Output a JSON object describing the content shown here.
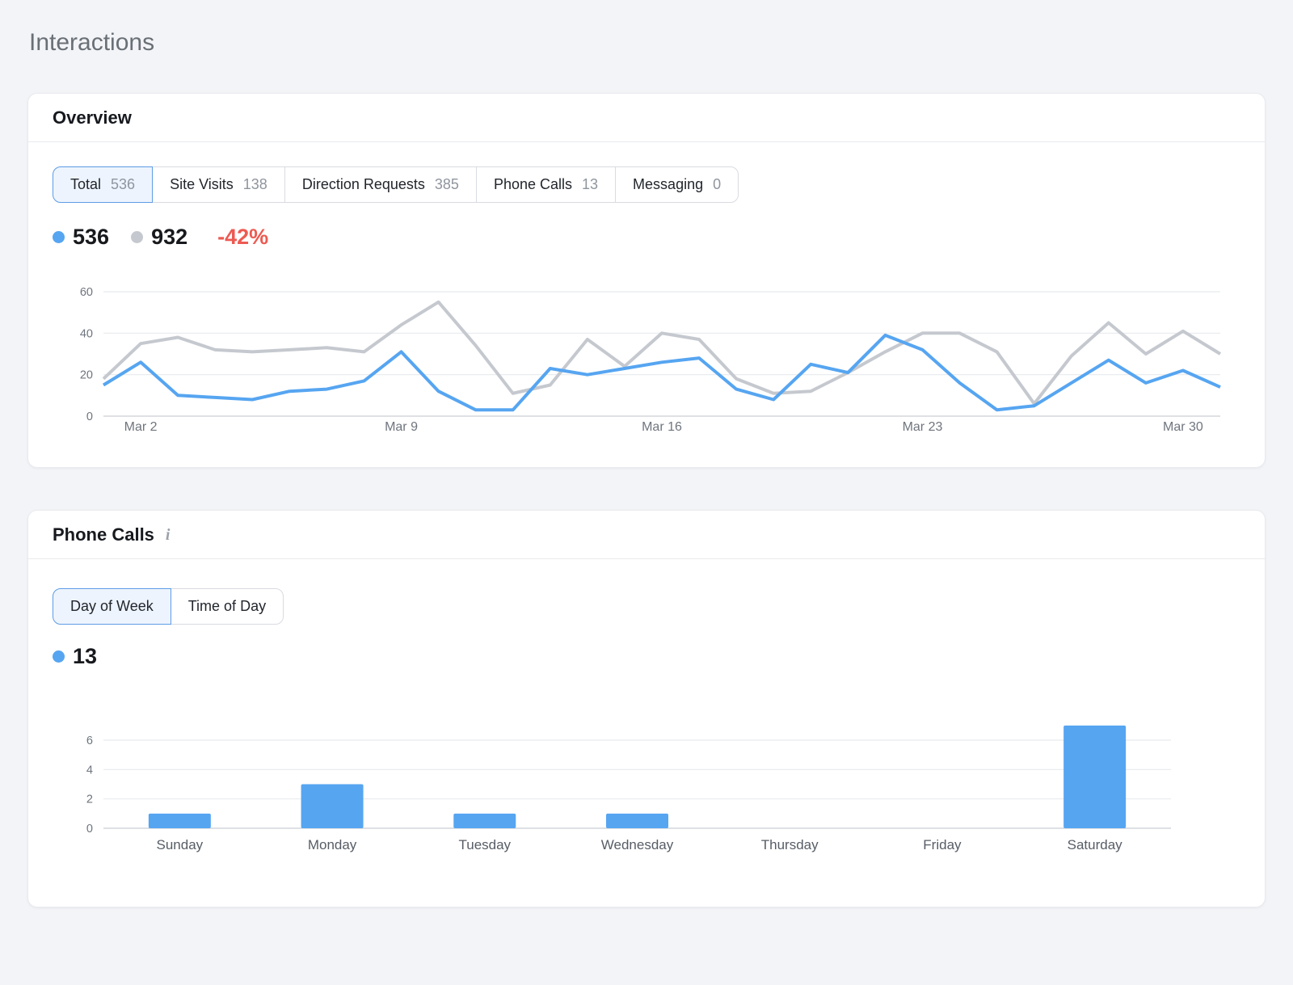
{
  "page": {
    "title": "Interactions"
  },
  "colors": {
    "accent_blue": "#56A5F1",
    "compare_gray": "#C5C9CF",
    "negative_red": "#ED5A52",
    "grid_line": "#E8EAEE",
    "zero_line": "#C9CDD3",
    "axis_label": "#6F757E",
    "category_label": "#575D66"
  },
  "overview": {
    "title": "Overview",
    "tabs": [
      {
        "label": "Total",
        "value": "536",
        "active": true
      },
      {
        "label": "Site Visits",
        "value": "138",
        "active": false
      },
      {
        "label": "Direction Requests",
        "value": "385",
        "active": false
      },
      {
        "label": "Phone Calls",
        "value": "13",
        "active": false
      },
      {
        "label": "Messaging",
        "value": "0",
        "active": false
      }
    ],
    "legend": {
      "current": "536",
      "previous": "932",
      "delta": "-42%"
    }
  },
  "phone_calls": {
    "title": "Phone Calls",
    "info_icon": "i",
    "tabs": [
      {
        "label": "Day of Week",
        "active": true
      },
      {
        "label": "Time of Day",
        "active": false
      }
    ],
    "legend": {
      "total": "13"
    }
  },
  "chart_data": [
    {
      "type": "line",
      "title": "Overview interactions, current vs previous period",
      "x": [
        "Mar 1",
        "Mar 2",
        "Mar 3",
        "Mar 4",
        "Mar 5",
        "Mar 6",
        "Mar 7",
        "Mar 8",
        "Mar 9",
        "Mar 10",
        "Mar 11",
        "Mar 12",
        "Mar 13",
        "Mar 14",
        "Mar 15",
        "Mar 16",
        "Mar 17",
        "Mar 18",
        "Mar 19",
        "Mar 20",
        "Mar 21",
        "Mar 22",
        "Mar 23",
        "Mar 24",
        "Mar 25",
        "Mar 26",
        "Mar 27",
        "Mar 28",
        "Mar 29",
        "Mar 30",
        "Mar 31"
      ],
      "visible_x_ticks": [
        "Mar 2",
        "Mar 9",
        "Mar 16",
        "Mar 23",
        "Mar 30"
      ],
      "yticks": [
        0,
        20,
        40,
        60
      ],
      "ylim": [
        0,
        60
      ],
      "grid": true,
      "legend_position": "inline-top",
      "series": [
        {
          "name": "current",
          "total": 536,
          "color": "#56A5F1",
          "values": [
            15,
            26,
            10,
            9,
            8,
            12,
            13,
            17,
            31,
            12,
            3,
            3,
            23,
            20,
            23,
            26,
            28,
            13,
            8,
            25,
            21,
            39,
            32,
            16,
            3,
            5,
            16,
            27,
            16,
            22,
            14
          ]
        },
        {
          "name": "previous",
          "total": 932,
          "color": "#C5C9CF",
          "values": [
            18,
            35,
            38,
            32,
            31,
            32,
            33,
            31,
            44,
            55,
            34,
            11,
            15,
            37,
            24,
            40,
            37,
            18,
            11,
            12,
            21,
            31,
            40,
            40,
            31,
            6,
            29,
            45,
            30,
            41,
            30
          ]
        }
      ]
    },
    {
      "type": "bar",
      "title": "Phone calls by day of week",
      "categories": [
        "Sunday",
        "Monday",
        "Tuesday",
        "Wednesday",
        "Thursday",
        "Friday",
        "Saturday"
      ],
      "values": [
        1,
        3,
        1,
        1,
        0,
        0,
        7
      ],
      "yticks": [
        0,
        2,
        4,
        6
      ],
      "ylim": [
        0,
        8
      ],
      "color": "#56A5F1"
    }
  ]
}
